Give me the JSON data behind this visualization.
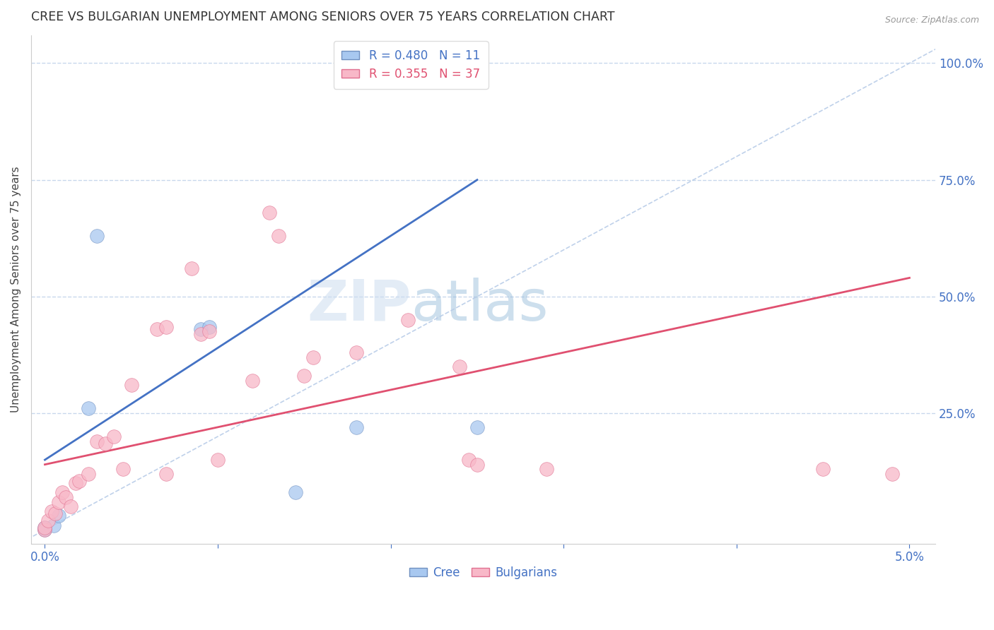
{
  "title": "CREE VS BULGARIAN UNEMPLOYMENT AMONG SENIORS OVER 75 YEARS CORRELATION CHART",
  "source": "Source: ZipAtlas.com",
  "ylabel_left": "Unemployment Among Seniors over 75 years",
  "xlim": [
    0.0,
    5.0
  ],
  "ylim": [
    0.0,
    100.0
  ],
  "right_yticks": [
    25.0,
    50.0,
    75.0,
    100.0
  ],
  "cree_scatter": [
    [
      0.0,
      0.0
    ],
    [
      0.0,
      0.5
    ],
    [
      0.05,
      1.0
    ],
    [
      0.08,
      3.0
    ],
    [
      0.25,
      26.0
    ],
    [
      0.3,
      63.0
    ],
    [
      0.9,
      43.0
    ],
    [
      0.95,
      43.5
    ],
    [
      1.8,
      22.0
    ],
    [
      2.5,
      22.0
    ],
    [
      1.45,
      8.0
    ]
  ],
  "bulgarian_scatter": [
    [
      0.0,
      0.0
    ],
    [
      0.0,
      0.5
    ],
    [
      0.02,
      2.0
    ],
    [
      0.04,
      4.0
    ],
    [
      0.06,
      3.5
    ],
    [
      0.08,
      6.0
    ],
    [
      0.1,
      8.0
    ],
    [
      0.12,
      7.0
    ],
    [
      0.15,
      5.0
    ],
    [
      0.18,
      10.0
    ],
    [
      0.2,
      10.5
    ],
    [
      0.25,
      12.0
    ],
    [
      0.3,
      19.0
    ],
    [
      0.35,
      18.5
    ],
    [
      0.4,
      20.0
    ],
    [
      0.45,
      13.0
    ],
    [
      0.5,
      31.0
    ],
    [
      0.65,
      43.0
    ],
    [
      0.7,
      43.5
    ],
    [
      0.7,
      12.0
    ],
    [
      0.85,
      56.0
    ],
    [
      0.9,
      42.0
    ],
    [
      0.95,
      42.5
    ],
    [
      1.0,
      15.0
    ],
    [
      1.2,
      32.0
    ],
    [
      1.3,
      68.0
    ],
    [
      1.35,
      63.0
    ],
    [
      1.5,
      33.0
    ],
    [
      1.55,
      37.0
    ],
    [
      1.8,
      38.0
    ],
    [
      2.1,
      45.0
    ],
    [
      2.4,
      35.0
    ],
    [
      2.45,
      15.0
    ],
    [
      2.5,
      14.0
    ],
    [
      2.9,
      13.0
    ],
    [
      4.5,
      13.0
    ],
    [
      4.9,
      12.0
    ]
  ],
  "cree_color": "#a8c8f0",
  "bulgarian_color": "#f8b8c8",
  "cree_edge_color": "#7090c0",
  "bulgarian_edge_color": "#e07090",
  "cree_line_color": "#4472c4",
  "bulgarian_line_color": "#e05070",
  "diagonal_color": "#b8cce8",
  "cree_line_x0": 0.0,
  "cree_line_y0": 15.0,
  "cree_line_x1": 2.5,
  "cree_line_y1": 75.0,
  "bulgarian_line_x0": 0.0,
  "bulgarian_line_y0": 14.0,
  "bulgarian_line_x1": 5.0,
  "bulgarian_line_y1": 54.0,
  "cree_R": 0.48,
  "cree_N": 11,
  "bulgarian_R": 0.355,
  "bulgarian_N": 37,
  "watermark_zip": "ZIP",
  "watermark_atlas": "atlas",
  "background_color": "#ffffff",
  "grid_color": "#c8d8ec",
  "title_color": "#333333",
  "tick_label_color": "#4472c4",
  "ylabel_color": "#444444"
}
